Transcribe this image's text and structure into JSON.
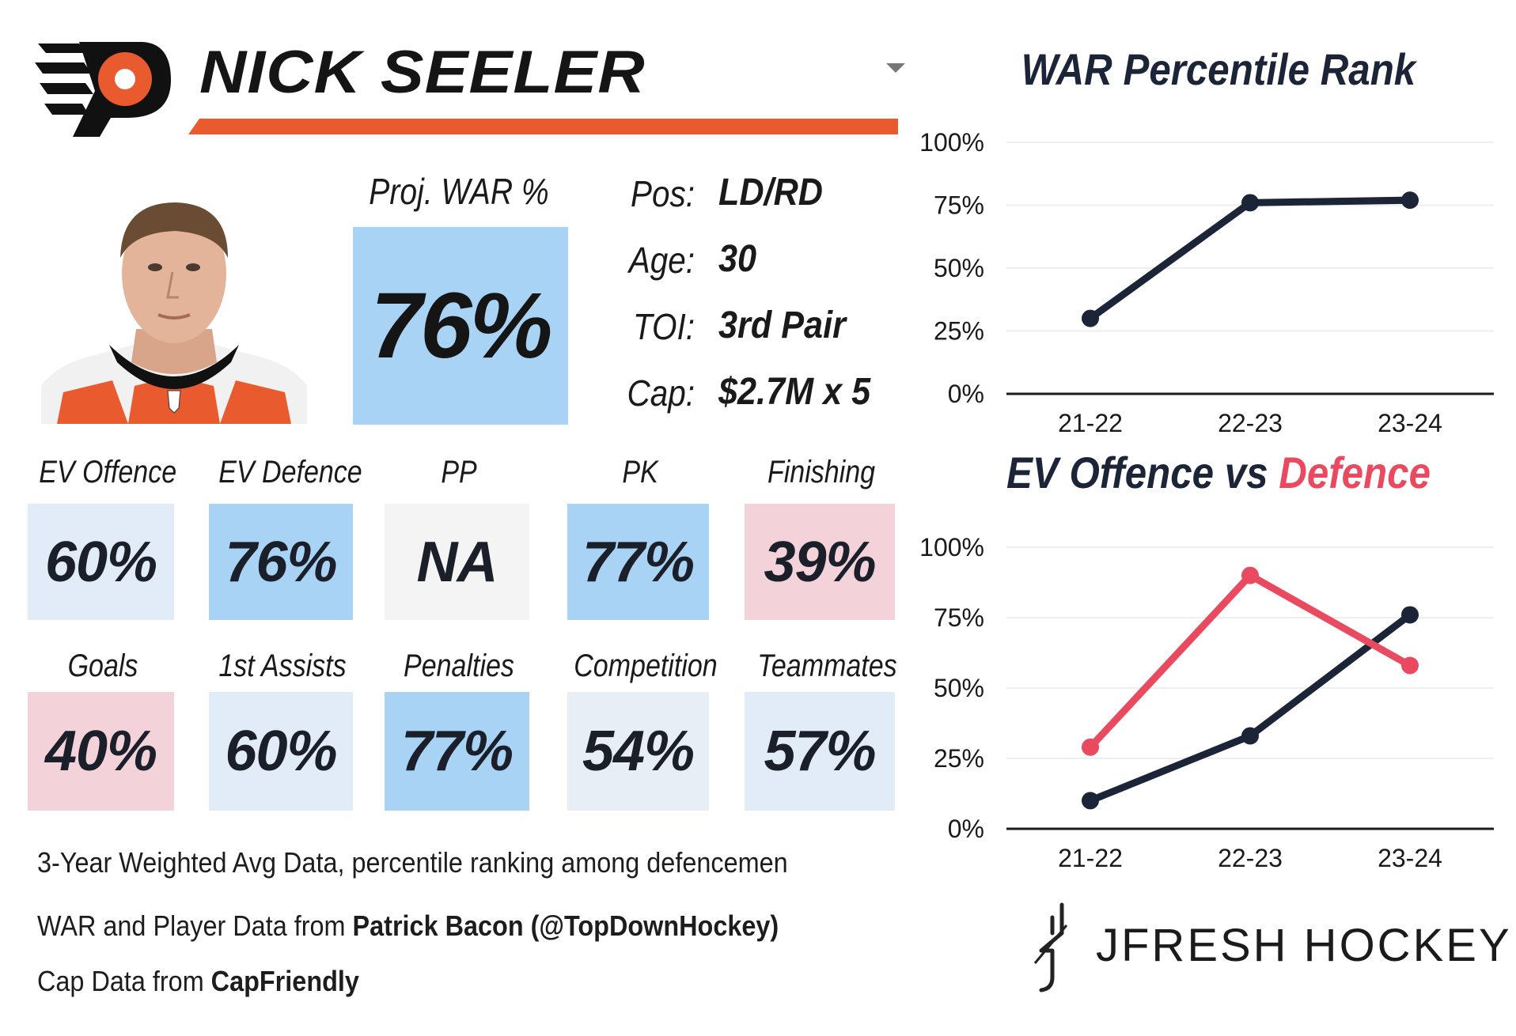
{
  "player": {
    "name": "NICK SEELER"
  },
  "proj_war": {
    "label": "Proj. WAR %",
    "value": "76%",
    "color": "#a9d3f5"
  },
  "info": [
    {
      "label": "Pos:",
      "value": "LD/RD"
    },
    {
      "label": "Age:",
      "value": "30"
    },
    {
      "label": "TOI:",
      "value": "3rd Pair"
    },
    {
      "label": "Cap:",
      "value": "$2.7M x 5"
    }
  ],
  "tiles_row1": [
    {
      "label": "EV Offence",
      "value": "60%",
      "color": "#e1ecf8"
    },
    {
      "label": "EV Defence",
      "value": "76%",
      "color": "#a9d3f5"
    },
    {
      "label": "PP",
      "value": "NA",
      "color": "#f4f4f5"
    },
    {
      "label": "PK",
      "value": "77%",
      "color": "#a9d3f5"
    },
    {
      "label": "Finishing",
      "value": "39%",
      "color": "#f4d2da"
    }
  ],
  "tiles_row2": [
    {
      "label": "Goals",
      "value": "40%",
      "color": "#f4d2da"
    },
    {
      "label": "1st Assists",
      "value": "60%",
      "color": "#e1ecf8"
    },
    {
      "label": "Penalties",
      "value": "77%",
      "color": "#a9d3f5"
    },
    {
      "label": "Competition",
      "value": "54%",
      "color": "#e8eef6"
    },
    {
      "label": "Teammates",
      "value": "57%",
      "color": "#e1ecf8"
    }
  ],
  "footer": {
    "line1": "3-Year Weighted Avg Data, percentile ranking among defencemen",
    "line2_prefix": "WAR and Player Data from ",
    "line2_bold": "Patrick Bacon (@TopDownHockey)",
    "line3_prefix": "Cap Data from ",
    "line3_bold": "CapFriendly"
  },
  "brand": "JFRESH HOCKEY",
  "colors": {
    "flyers_orange": "#e95a2e",
    "navy": "#1c2438",
    "red": "#ea4a60"
  },
  "chart_data": [
    {
      "type": "line",
      "title": "WAR Percentile Rank",
      "categories": [
        "21-22",
        "22-23",
        "23-24"
      ],
      "series": [
        {
          "values": [
            30,
            76,
            77
          ],
          "color": "#1c2438"
        }
      ],
      "ylim": [
        0,
        100
      ],
      "yticks": [
        "0%",
        "25%",
        "50%",
        "75%",
        "100%"
      ],
      "grid": true
    },
    {
      "type": "line",
      "title_part1": "EV Offence vs ",
      "title_part2": "Defence",
      "categories": [
        "21-22",
        "22-23",
        "23-24"
      ],
      "series": [
        {
          "name": "EV Offence",
          "values": [
            10,
            33,
            76
          ],
          "color": "#1c2438"
        },
        {
          "name": "Defence",
          "values": [
            29,
            90,
            58
          ],
          "color": "#ea4a60"
        }
      ],
      "ylim": [
        0,
        100
      ],
      "yticks": [
        "0%",
        "25%",
        "50%",
        "75%",
        "100%"
      ],
      "grid": true
    }
  ]
}
